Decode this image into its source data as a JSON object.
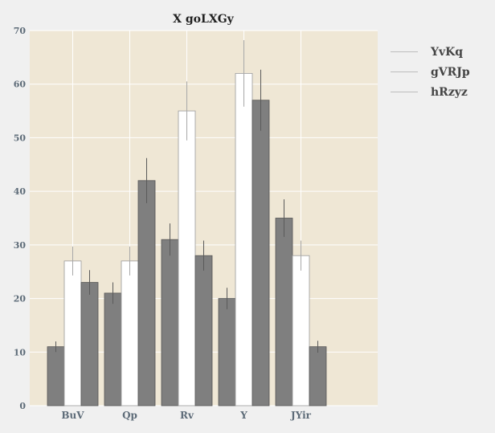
{
  "chart_data": {
    "type": "bar",
    "title": "X goLXGy",
    "xlabel": "",
    "ylabel": "",
    "categories": [
      "BuV",
      "Qp",
      "Rv",
      "Y",
      "JYir"
    ],
    "ylim": [
      0,
      70
    ],
    "yticks": [
      0,
      10,
      20,
      30,
      40,
      50,
      60,
      70
    ],
    "grid": true,
    "legend_position": "right",
    "series": [
      {
        "name": "YvKq",
        "values": [
          11,
          21,
          31,
          20,
          35
        ],
        "errors": [
          1,
          2,
          3,
          2,
          3.5
        ],
        "color": "#7f7f7f"
      },
      {
        "name": "gVRJp",
        "values": [
          27,
          27,
          55,
          62,
          28
        ],
        "errors": [
          2.7,
          2.7,
          5.5,
          6.2,
          2.8
        ],
        "color": "#ffffff"
      },
      {
        "name": "hRzyz",
        "values": [
          23,
          42,
          28,
          57,
          11
        ],
        "errors": [
          2.3,
          4.2,
          2.8,
          5.7,
          1.1
        ],
        "color": "#7f7f7f"
      }
    ],
    "colors": {
      "plot_background": "#efe7d5",
      "page_background": "#f0f0f0",
      "grid": "#ffffff",
      "tick_label": "#5d6b78",
      "bar_edge": "#555555",
      "white_bar_edge": "#9a9a9a",
      "error_bar": "#8a8a8a"
    }
  }
}
